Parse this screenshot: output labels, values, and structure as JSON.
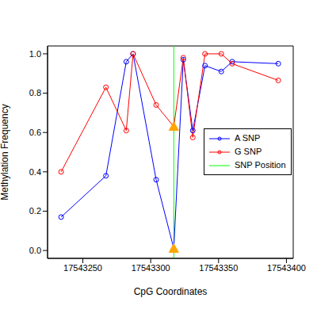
{
  "chart_data": {
    "type": "line",
    "x_label": "CpG Coordinates",
    "y_label": "Methylation Frequency",
    "x": [
      17543234,
      17543267,
      17543282,
      17543287,
      17543304,
      17543317,
      17543324,
      17543331,
      17543340,
      17543352,
      17543360,
      17543394
    ],
    "series": [
      {
        "name": "A SNP",
        "color": "#0000ff",
        "marker": "circle",
        "values": [
          0.17,
          0.38,
          0.96,
          1.0,
          0.36,
          0.01,
          0.97,
          0.61,
          0.94,
          0.91,
          0.96,
          0.95
        ]
      },
      {
        "name": "G SNP",
        "color": "#ff0000",
        "marker": "circle",
        "values": [
          0.4,
          0.83,
          0.61,
          1.0,
          0.74,
          0.63,
          0.98,
          0.575,
          1.0,
          1.0,
          0.95,
          0.865
        ]
      }
    ],
    "snp_position": {
      "name": "SNP Position",
      "x": 17543317,
      "color": "#00ff00",
      "marker": "triangle"
    },
    "xlim": [
      17543224,
      17543405
    ],
    "xticks": [
      17543250,
      17543300,
      17543350,
      17543400
    ],
    "ylim": [
      -0.04,
      1.04
    ],
    "yticks": [
      {
        "value": 0,
        "label": "0.0"
      },
      0.2,
      0.4,
      0.6,
      0.8,
      {
        "value": 1,
        "label": "1.0"
      }
    ],
    "legend": "right"
  }
}
